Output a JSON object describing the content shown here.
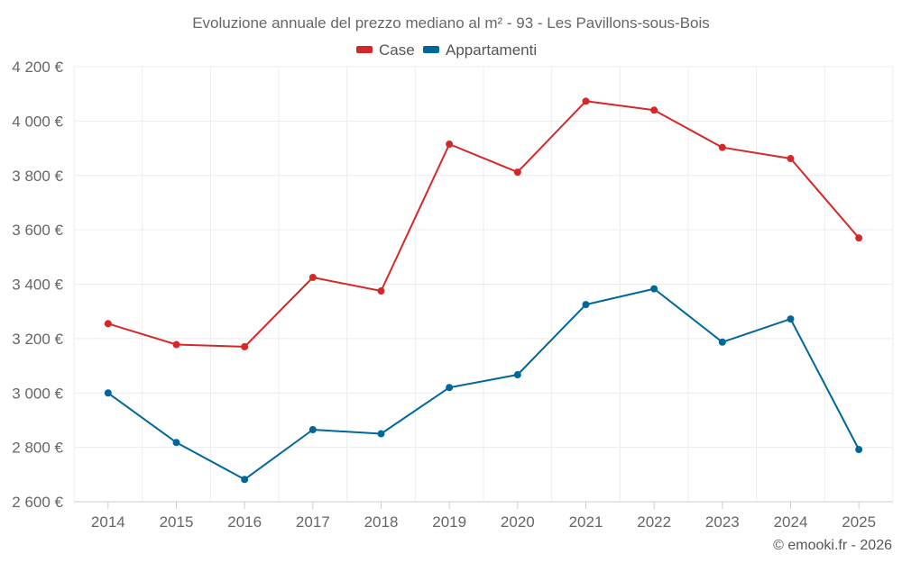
{
  "chart_data": {
    "type": "line",
    "title": "Evoluzione annuale del prezzo mediano al m² - 93 - Les Pavillons-sous-Bois",
    "categories": [
      "2014",
      "2015",
      "2016",
      "2017",
      "2018",
      "2019",
      "2020",
      "2021",
      "2022",
      "2023",
      "2024",
      "2025"
    ],
    "series": [
      {
        "name": "Case",
        "color": "#d62728",
        "values": [
          3255,
          3178,
          3170,
          3425,
          3375,
          3915,
          3812,
          4073,
          4040,
          3903,
          3862,
          3570
        ]
      },
      {
        "name": "Appartamenti",
        "color": "#00679a",
        "values": [
          3000,
          2818,
          2682,
          2865,
          2850,
          3020,
          3067,
          3325,
          3383,
          3187,
          3272,
          2792
        ]
      }
    ],
    "ylim": [
      2600,
      4200
    ],
    "yticks": [
      2600,
      2800,
      3000,
      3200,
      3400,
      3600,
      3800,
      4000,
      4200
    ],
    "ytick_labels": [
      "2 600 €",
      "2 800 €",
      "3 000 €",
      "3 200 €",
      "3 400 €",
      "3 600 €",
      "3 800 €",
      "4 000 €",
      "4 200 €"
    ],
    "legend_position": "top-center",
    "grid": true,
    "xlabel": "",
    "ylabel": ""
  },
  "credit": "© emooki.fr - 2026"
}
